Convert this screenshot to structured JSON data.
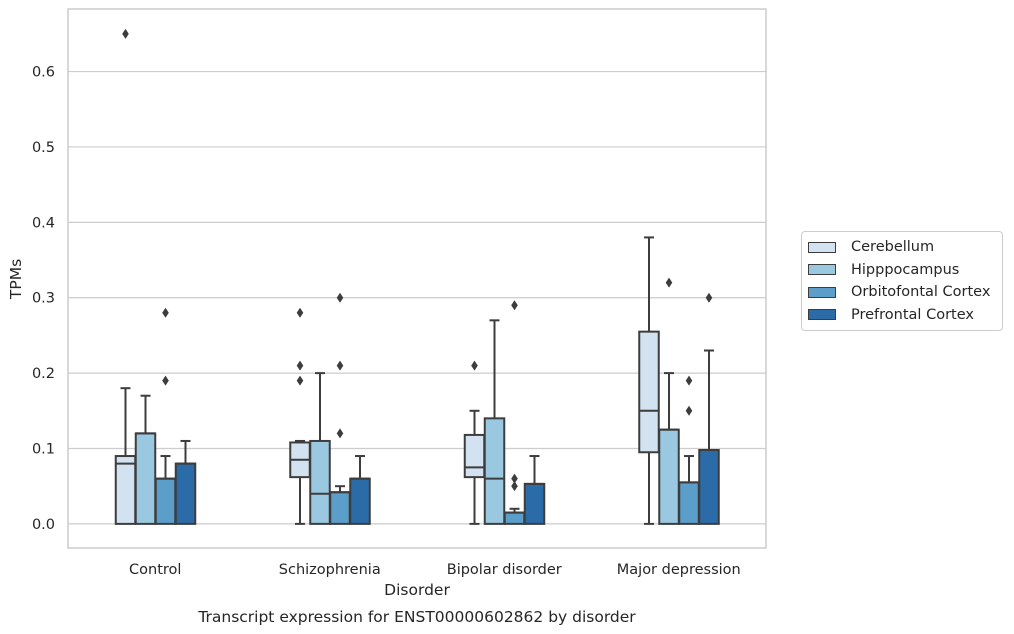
{
  "chart_data": {
    "type": "box",
    "caption": "Transcript expression for ENST00000602862 by disorder",
    "xlabel": "Disorder",
    "ylabel": "TPMs",
    "ylim": [
      -0.032,
      0.683
    ],
    "yticks": [
      0.0,
      0.1,
      0.2,
      0.3,
      0.4,
      0.5,
      0.6
    ],
    "ytick_labels": [
      "0.0",
      "0.1",
      "0.2",
      "0.3",
      "0.4",
      "0.5",
      "0.6"
    ],
    "grid": "horizontal",
    "legend_position": "right",
    "categories": [
      "Control",
      "Schizophrenia",
      "Bipolar disorder",
      "Major depression"
    ],
    "series": [
      {
        "name": "Cerebellum",
        "color": "#d2e2f1",
        "boxes": [
          {
            "whisker_low": 0.0,
            "q1": 0.0,
            "median": 0.08,
            "q3": 0.09,
            "whisker_high": 0.18,
            "outliers": [
              0.65
            ]
          },
          {
            "whisker_low": 0.0,
            "q1": 0.062,
            "median": 0.085,
            "q3": 0.108,
            "whisker_high": 0.11,
            "outliers": [
              0.19,
              0.21,
              0.28
            ]
          },
          {
            "whisker_low": 0.0,
            "q1": 0.062,
            "median": 0.075,
            "q3": 0.118,
            "whisker_high": 0.15,
            "outliers": [
              0.21
            ]
          },
          {
            "whisker_low": 0.0,
            "q1": 0.095,
            "median": 0.15,
            "q3": 0.255,
            "whisker_high": 0.38,
            "outliers": []
          }
        ]
      },
      {
        "name": "Hipppocampus",
        "color": "#9ac8e0",
        "boxes": [
          {
            "whisker_low": 0.0,
            "q1": 0.0,
            "median": 0.12,
            "q3": 0.12,
            "whisker_high": 0.17,
            "outliers": []
          },
          {
            "whisker_low": 0.0,
            "q1": 0.0,
            "median": 0.04,
            "q3": 0.11,
            "whisker_high": 0.2,
            "outliers": []
          },
          {
            "whisker_low": 0.0,
            "q1": 0.0,
            "median": 0.06,
            "q3": 0.14,
            "whisker_high": 0.27,
            "outliers": []
          },
          {
            "whisker_low": 0.0,
            "q1": 0.0,
            "median": 0.125,
            "q3": 0.125,
            "whisker_high": 0.2,
            "outliers": [
              0.32
            ]
          }
        ]
      },
      {
        "name": "Orbitofontal Cortex",
        "color": "#5a9ec9",
        "boxes": [
          {
            "whisker_low": 0.0,
            "q1": 0.0,
            "median": 0.06,
            "q3": 0.06,
            "whisker_high": 0.09,
            "outliers": [
              0.19,
              0.28
            ]
          },
          {
            "whisker_low": 0.0,
            "q1": 0.0,
            "median": 0.042,
            "q3": 0.042,
            "whisker_high": 0.05,
            "outliers": [
              0.12,
              0.21,
              0.3
            ]
          },
          {
            "whisker_low": 0.0,
            "q1": 0.0,
            "median": 0.015,
            "q3": 0.015,
            "whisker_high": 0.02,
            "outliers": [
              0.05,
              0.06,
              0.29
            ]
          },
          {
            "whisker_low": 0.0,
            "q1": 0.0,
            "median": 0.055,
            "q3": 0.055,
            "whisker_high": 0.09,
            "outliers": [
              0.15,
              0.19
            ]
          }
        ]
      },
      {
        "name": "Prefrontal Cortex",
        "color": "#2b6ba8",
        "boxes": [
          {
            "whisker_low": 0.0,
            "q1": 0.0,
            "median": 0.08,
            "q3": 0.08,
            "whisker_high": 0.11,
            "outliers": []
          },
          {
            "whisker_low": 0.0,
            "q1": 0.0,
            "median": 0.06,
            "q3": 0.06,
            "whisker_high": 0.09,
            "outliers": []
          },
          {
            "whisker_low": 0.0,
            "q1": 0.0,
            "median": 0.053,
            "q3": 0.053,
            "whisker_high": 0.09,
            "outliers": []
          },
          {
            "whisker_low": 0.0,
            "q1": 0.0,
            "median": 0.098,
            "q3": 0.098,
            "whisker_high": 0.23,
            "outliers": [
              0.3
            ]
          }
        ]
      }
    ]
  }
}
